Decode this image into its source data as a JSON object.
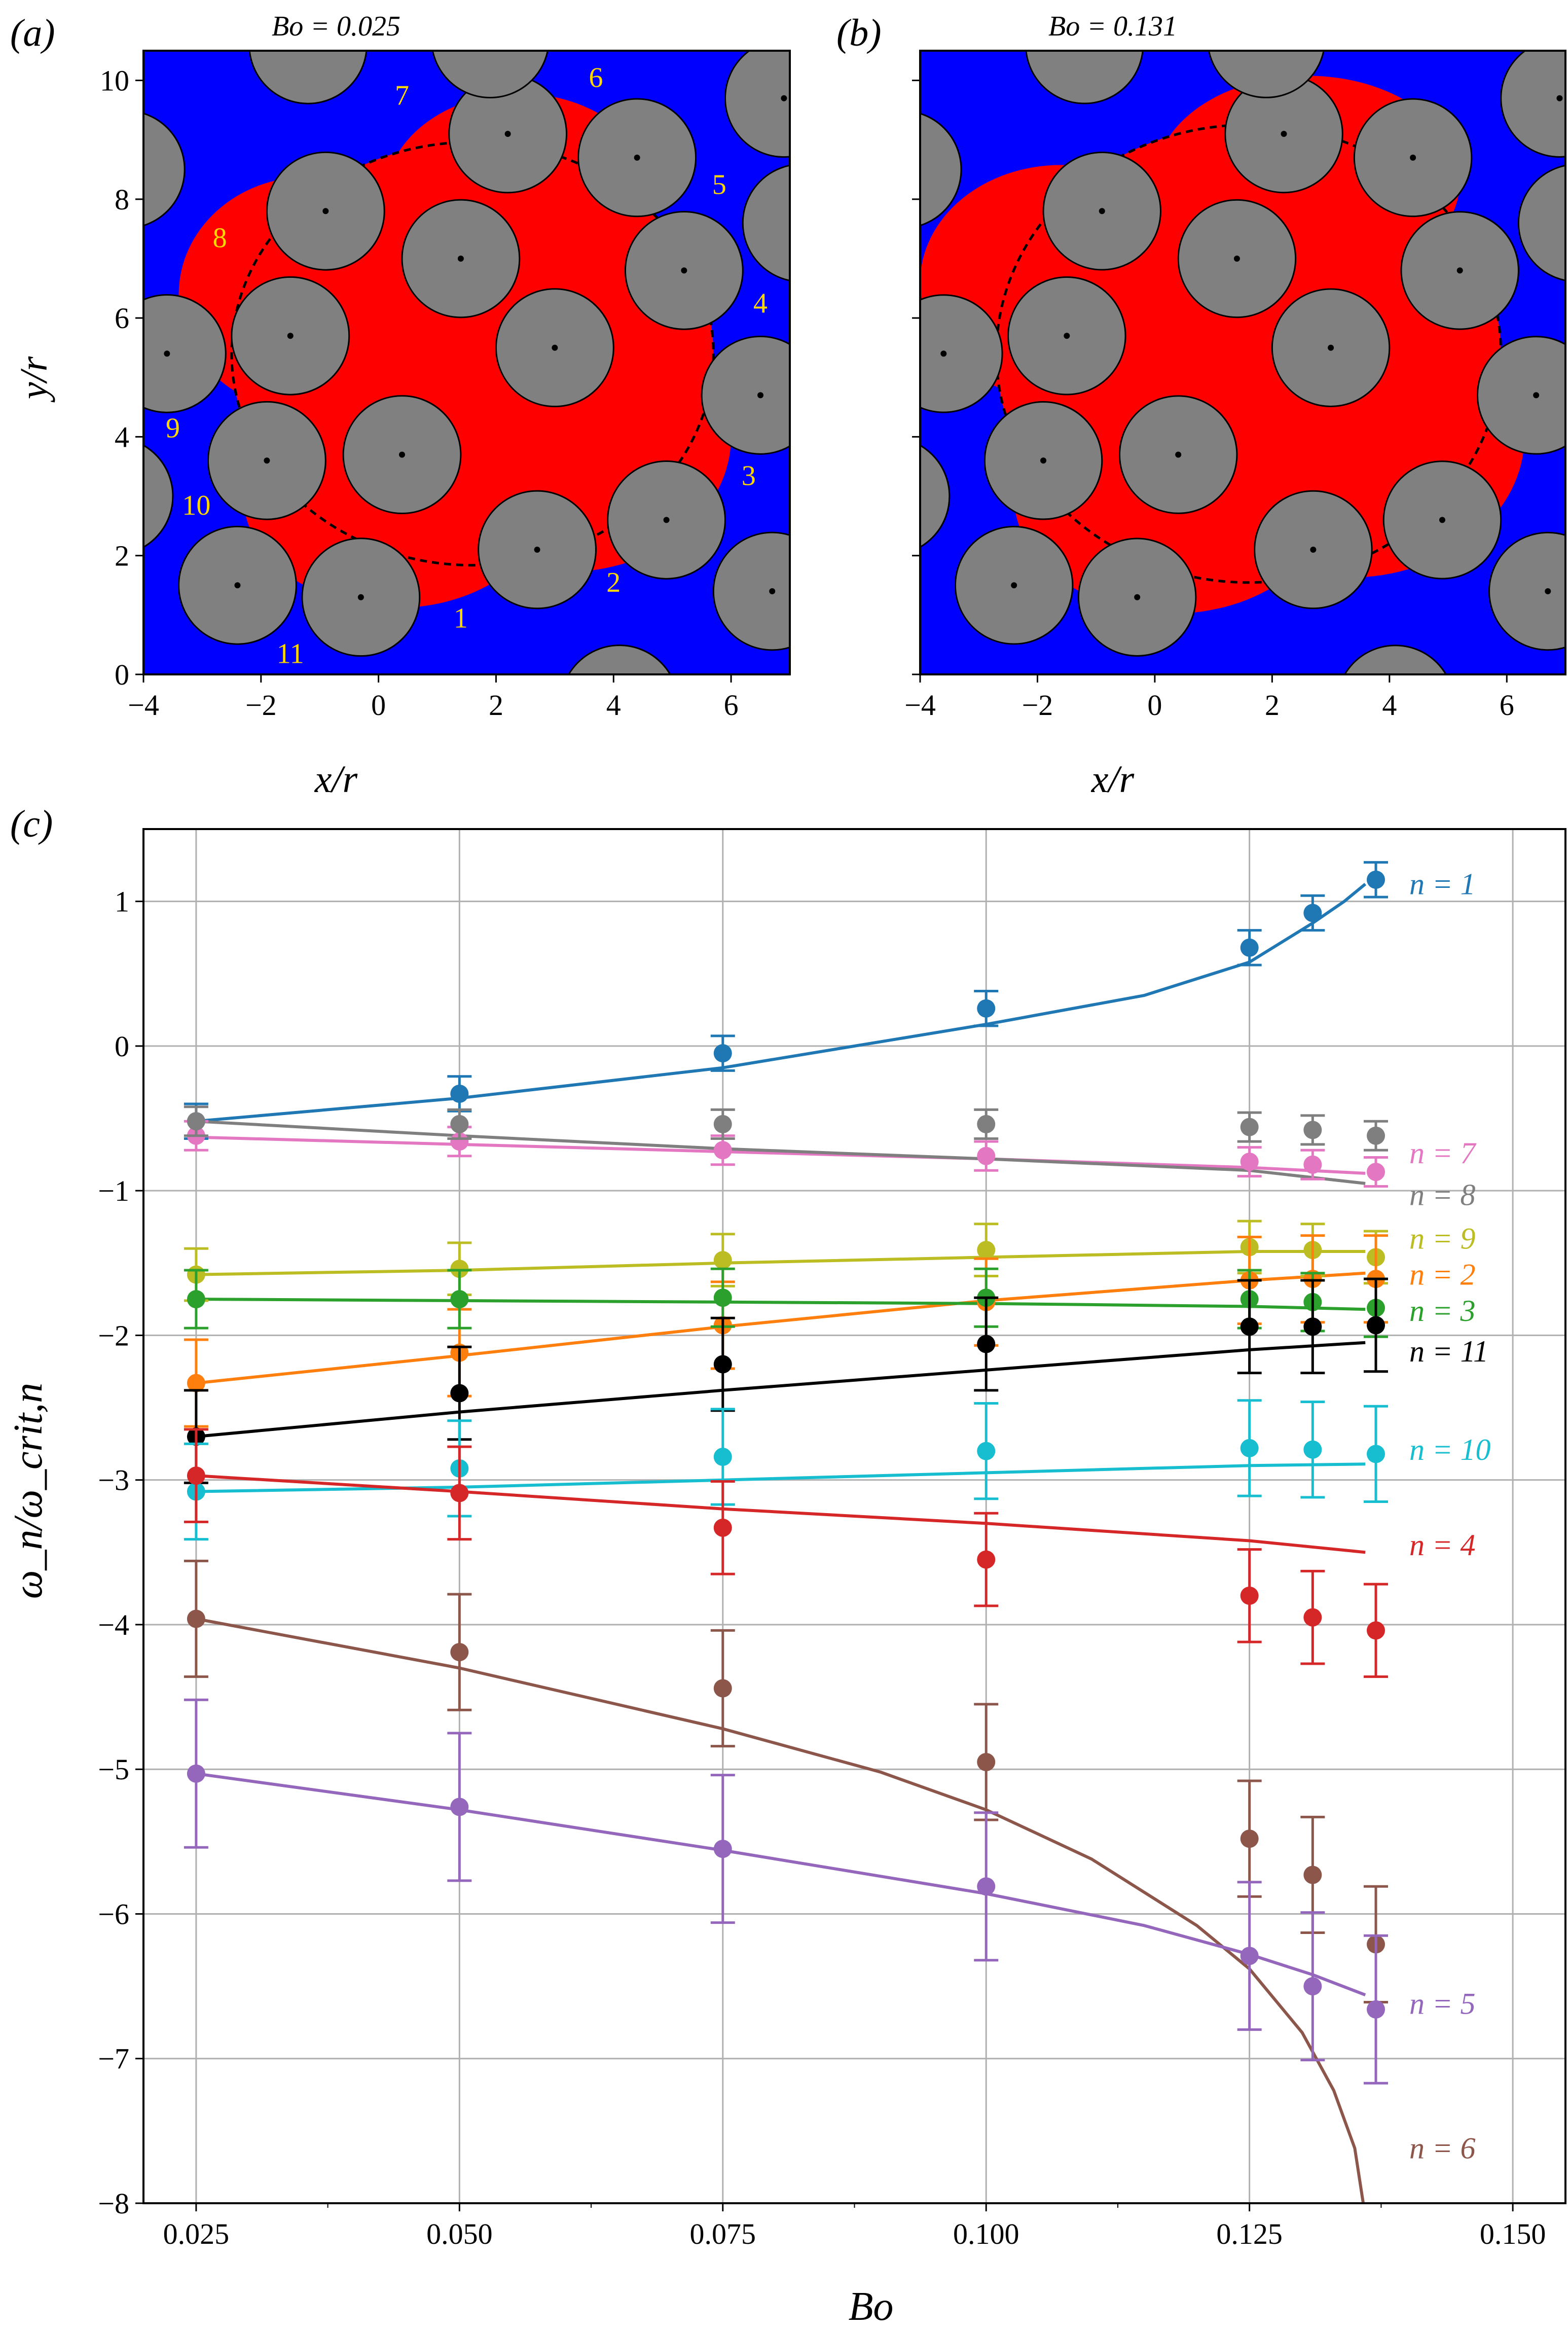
{
  "panels": [
    {
      "id": "a",
      "label": "(a)",
      "title": "Bo = 0.025",
      "xlabel": "x/r",
      "ylabel": "y/r",
      "xlim": [
        -4,
        7
      ],
      "ylim": [
        0,
        10.5
      ],
      "xticks": [
        -4,
        -2,
        0,
        2,
        4,
        6
      ],
      "yticks": [
        0,
        2,
        4,
        6,
        8,
        10
      ],
      "colors": {
        "background": "#0000ff",
        "invaded": "#ff0000",
        "grain": "#808080",
        "label": "#ffd700"
      },
      "grain_radius": 1,
      "grains": [
        [
          -2.4,
          1.5
        ],
        [
          -0.3,
          1.3
        ],
        [
          2.7,
          2.1
        ],
        [
          4.9,
          2.6
        ],
        [
          6.7,
          1.4
        ],
        [
          -1.9,
          3.6
        ],
        [
          0.4,
          3.7
        ],
        [
          6.5,
          4.7
        ],
        [
          -3.6,
          5.4
        ],
        [
          -1.5,
          5.7
        ],
        [
          3.0,
          5.5
        ],
        [
          5.2,
          6.8
        ],
        [
          -0.9,
          7.8
        ],
        [
          1.4,
          7.0
        ],
        [
          -4.3,
          8.5
        ],
        [
          2.2,
          9.1
        ],
        [
          4.4,
          8.7
        ],
        [
          -1.2,
          10.6
        ],
        [
          1.9,
          10.7
        ],
        [
          6.9,
          9.7
        ],
        [
          7.2,
          7.6
        ],
        [
          -4.5,
          3.0
        ],
        [
          4.1,
          -0.5
        ]
      ],
      "pore_labels": [
        {
          "text": "1",
          "x": 1.4,
          "y": 0.9
        },
        {
          "text": "2",
          "x": 4.0,
          "y": 1.5
        },
        {
          "text": "3",
          "x": 6.3,
          "y": 3.3
        },
        {
          "text": "4",
          "x": 6.5,
          "y": 6.2
        },
        {
          "text": "5",
          "x": 5.8,
          "y": 8.2
        },
        {
          "text": "6",
          "x": 3.7,
          "y": 10.0
        },
        {
          "text": "7",
          "x": 0.4,
          "y": 9.7
        },
        {
          "text": "8",
          "x": -2.7,
          "y": 7.3
        },
        {
          "text": "9",
          "x": -3.5,
          "y": 4.1
        },
        {
          "text": "10",
          "x": -3.1,
          "y": 2.8
        },
        {
          "text": "11",
          "x": -1.5,
          "y": 0.3
        }
      ]
    },
    {
      "id": "b",
      "label": "(b)",
      "title": "Bo = 0.131",
      "xlabel": "x/r",
      "ylabel": "",
      "xlim": [
        -4,
        7
      ],
      "ylim": [
        0,
        10.5
      ],
      "xticks": [
        -4,
        -2,
        0,
        2,
        4,
        6
      ],
      "yticks": [
        0,
        2,
        4,
        6,
        8,
        10
      ],
      "colors": {
        "background": "#0000ff",
        "invaded": "#ff0000",
        "grain": "#808080"
      },
      "grain_radius": 1,
      "grains": [
        [
          -2.4,
          1.5
        ],
        [
          -0.3,
          1.3
        ],
        [
          2.7,
          2.1
        ],
        [
          4.9,
          2.6
        ],
        [
          6.7,
          1.4
        ],
        [
          -1.9,
          3.6
        ],
        [
          0.4,
          3.7
        ],
        [
          6.5,
          4.7
        ],
        [
          -3.6,
          5.4
        ],
        [
          -1.5,
          5.7
        ],
        [
          3.0,
          5.5
        ],
        [
          5.2,
          6.8
        ],
        [
          -0.9,
          7.8
        ],
        [
          1.4,
          7.0
        ],
        [
          -4.3,
          8.5
        ],
        [
          2.2,
          9.1
        ],
        [
          4.4,
          8.7
        ],
        [
          -1.2,
          10.6
        ],
        [
          1.9,
          10.7
        ],
        [
          6.9,
          9.7
        ],
        [
          7.2,
          7.6
        ],
        [
          -4.5,
          3.0
        ],
        [
          4.1,
          -0.5
        ]
      ]
    }
  ],
  "chart_data": {
    "type": "scatter",
    "label": "(c)",
    "xlabel": "Bo",
    "ylabel": "ω_n/ω_crit,n",
    "xlim": [
      0.02,
      0.155
    ],
    "ylim": [
      -8,
      1.5
    ],
    "xticks": [
      "0.025",
      "0.050",
      "0.075",
      "0.100",
      "0.125",
      "0.150"
    ],
    "yticks": [
      "1",
      "0",
      "−1",
      "−2",
      "−3",
      "−4",
      "−5",
      "−6",
      "−7",
      "−8"
    ],
    "grid": true,
    "x": [
      0.025,
      0.05,
      0.075,
      0.1,
      0.125,
      0.131,
      0.137
    ],
    "series": [
      {
        "name": "n = 1",
        "color": "#1f77b4",
        "values": [
          -0.52,
          -0.33,
          -0.05,
          0.26,
          0.68,
          0.92,
          1.15
        ],
        "err": 0.12,
        "curve": [
          [
            0.025,
            -0.52
          ],
          [
            0.05,
            -0.36
          ],
          [
            0.075,
            -0.15
          ],
          [
            0.1,
            0.15
          ],
          [
            0.115,
            0.35
          ],
          [
            0.125,
            0.58
          ],
          [
            0.131,
            0.85
          ],
          [
            0.134,
            1.0
          ],
          [
            0.136,
            1.12
          ]
        ]
      },
      {
        "name": "n = 7",
        "color": "#e377c2",
        "values": [
          -0.62,
          -0.66,
          -0.72,
          -0.76,
          -0.8,
          -0.82,
          -0.87
        ],
        "err": 0.1,
        "curve": [
          [
            0.025,
            -0.63
          ],
          [
            0.05,
            -0.68
          ],
          [
            0.075,
            -0.73
          ],
          [
            0.1,
            -0.78
          ],
          [
            0.125,
            -0.84
          ],
          [
            0.136,
            -0.88
          ]
        ]
      },
      {
        "name": "n = 8",
        "color": "#7f7f7f",
        "values": [
          -0.52,
          -0.54,
          -0.54,
          -0.54,
          -0.56,
          -0.58,
          -0.62
        ],
        "err": 0.1,
        "curve": [
          [
            0.025,
            -0.52
          ],
          [
            0.05,
            -0.62
          ],
          [
            0.075,
            -0.71
          ],
          [
            0.1,
            -0.78
          ],
          [
            0.125,
            -0.86
          ],
          [
            0.136,
            -0.95
          ]
        ]
      },
      {
        "name": "n = 9",
        "color": "#bcbd22",
        "values": [
          -1.58,
          -1.54,
          -1.48,
          -1.41,
          -1.39,
          -1.41,
          -1.46
        ],
        "err": 0.18,
        "curve": [
          [
            0.025,
            -1.58
          ],
          [
            0.05,
            -1.55
          ],
          [
            0.075,
            -1.5
          ],
          [
            0.1,
            -1.46
          ],
          [
            0.125,
            -1.42
          ],
          [
            0.136,
            -1.42
          ]
        ]
      },
      {
        "name": "n = 2",
        "color": "#ff7f0e",
        "values": [
          -2.33,
          -2.12,
          -1.93,
          -1.77,
          -1.62,
          -1.61,
          -1.61
        ],
        "err": 0.3,
        "curve": [
          [
            0.025,
            -2.33
          ],
          [
            0.05,
            -2.14
          ],
          [
            0.075,
            -1.94
          ],
          [
            0.1,
            -1.76
          ],
          [
            0.125,
            -1.62
          ],
          [
            0.136,
            -1.57
          ]
        ]
      },
      {
        "name": "n = 3",
        "color": "#2ca02c",
        "values": [
          -1.75,
          -1.75,
          -1.74,
          -1.74,
          -1.75,
          -1.77,
          -1.81
        ],
        "err": 0.2,
        "curve": [
          [
            0.025,
            -1.75
          ],
          [
            0.05,
            -1.76
          ],
          [
            0.075,
            -1.77
          ],
          [
            0.1,
            -1.78
          ],
          [
            0.125,
            -1.8
          ],
          [
            0.136,
            -1.82
          ]
        ]
      },
      {
        "name": "n = 11",
        "color": "#000000",
        "values": [
          -2.7,
          -2.4,
          -2.2,
          -2.06,
          -1.94,
          -1.94,
          -1.93
        ],
        "err": 0.32,
        "curve": [
          [
            0.025,
            -2.7
          ],
          [
            0.05,
            -2.53
          ],
          [
            0.075,
            -2.38
          ],
          [
            0.1,
            -2.24
          ],
          [
            0.125,
            -2.1
          ],
          [
            0.136,
            -2.05
          ]
        ]
      },
      {
        "name": "n = 10",
        "color": "#17becf",
        "values": [
          -3.08,
          -2.92,
          -2.84,
          -2.8,
          -2.78,
          -2.79,
          -2.82
        ],
        "err": 0.33,
        "curve": [
          [
            0.025,
            -3.08
          ],
          [
            0.05,
            -3.05
          ],
          [
            0.075,
            -3.0
          ],
          [
            0.1,
            -2.95
          ],
          [
            0.125,
            -2.9
          ],
          [
            0.136,
            -2.89
          ]
        ]
      },
      {
        "name": "n = 4",
        "color": "#d62728",
        "values": [
          -2.97,
          -3.09,
          -3.33,
          -3.55,
          -3.8,
          -3.95,
          -4.04
        ],
        "err": 0.32,
        "curve": [
          [
            0.025,
            -2.97
          ],
          [
            0.05,
            -3.08
          ],
          [
            0.075,
            -3.2
          ],
          [
            0.1,
            -3.3
          ],
          [
            0.125,
            -3.42
          ],
          [
            0.136,
            -3.5
          ]
        ]
      },
      {
        "name": "n = 6",
        "color": "#8c564b",
        "values": [
          -3.96,
          -4.19,
          -4.44,
          -4.95,
          -5.48,
          -5.73,
          -6.21
        ],
        "err": 0.4,
        "curve": [
          [
            0.025,
            -3.96
          ],
          [
            0.05,
            -4.3
          ],
          [
            0.075,
            -4.72
          ],
          [
            0.09,
            -5.02
          ],
          [
            0.1,
            -5.28
          ],
          [
            0.11,
            -5.62
          ],
          [
            0.12,
            -6.08
          ],
          [
            0.125,
            -6.38
          ],
          [
            0.13,
            -6.82
          ],
          [
            0.133,
            -7.22
          ],
          [
            0.135,
            -7.62
          ],
          [
            0.1358,
            -8.0
          ]
        ]
      },
      {
        "name": "n = 5",
        "color": "#9467bd",
        "values": [
          -5.03,
          -5.26,
          -5.55,
          -5.81,
          -6.29,
          -6.5,
          -6.66
        ],
        "err": 0.51,
        "curve": [
          [
            0.025,
            -5.03
          ],
          [
            0.05,
            -5.28
          ],
          [
            0.075,
            -5.56
          ],
          [
            0.1,
            -5.86
          ],
          [
            0.115,
            -6.08
          ],
          [
            0.125,
            -6.28
          ],
          [
            0.131,
            -6.42
          ],
          [
            0.136,
            -6.56
          ]
        ]
      }
    ],
    "legend_labels": [
      {
        "series": 0,
        "y": 1.12
      },
      {
        "series": 1,
        "y": -0.74
      },
      {
        "series": 2,
        "y": -1.03
      },
      {
        "series": 3,
        "y": -1.33
      },
      {
        "series": 4,
        "y": -1.58
      },
      {
        "series": 5,
        "y": -1.83
      },
      {
        "series": 6,
        "y": -2.11
      },
      {
        "series": 7,
        "y": -2.79
      },
      {
        "series": 8,
        "y": -3.45
      },
      {
        "series": 10,
        "y": -6.62
      },
      {
        "series": 9,
        "y": -7.62
      }
    ]
  }
}
